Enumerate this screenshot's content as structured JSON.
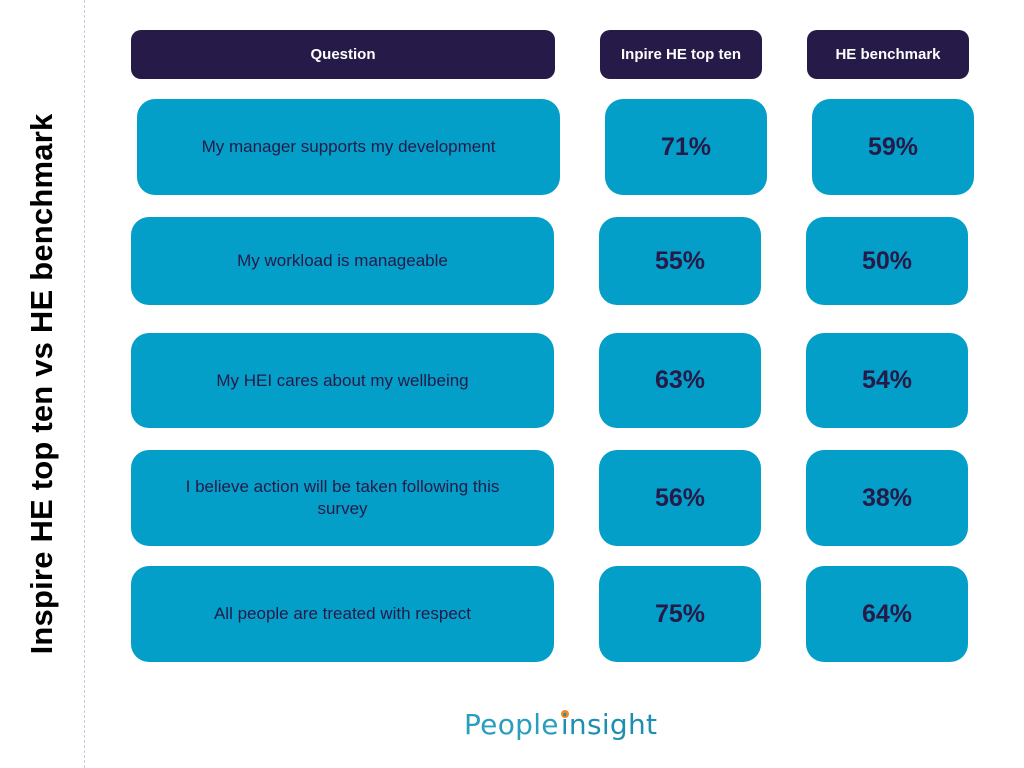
{
  "side_title": "Inspire HE top ten vs HE benchmark",
  "headers": {
    "question": "Question",
    "inspire": "Inpire HE top ten",
    "benchmark": "HE benchmark"
  },
  "rows": [
    {
      "question": "My manager supports my development",
      "inspire": "71%",
      "benchmark": "59%"
    },
    {
      "question": "My workload is manageable",
      "inspire": "55%",
      "benchmark": "50%"
    },
    {
      "question": "My HEI cares about my wellbeing",
      "inspire": "63%",
      "benchmark": "54%"
    },
    {
      "question": "I believe action will be taken following this survey",
      "inspire": "56%",
      "benchmark": "38%"
    },
    {
      "question": "All people are treated with respect",
      "inspire": "75%",
      "benchmark": "64%"
    }
  ],
  "logo": {
    "part1": "People",
    "part2": "insight"
  },
  "colors": {
    "header_bg": "#261a48",
    "cell_bg": "#039fc8",
    "text_dark": "#261a48",
    "logo_accent": "#f08a24"
  }
}
